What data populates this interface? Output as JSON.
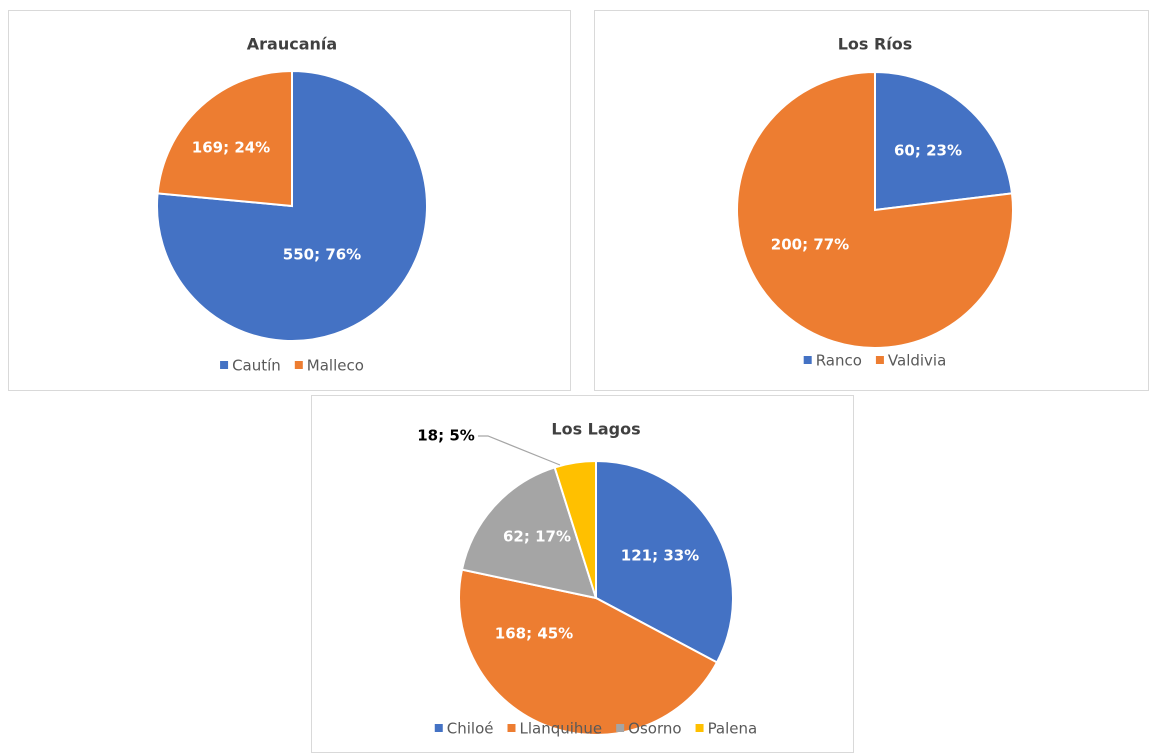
{
  "chart_data": [
    {
      "type": "pie",
      "title": "Araucanía",
      "categories": [
        "Cautín",
        "Malleco"
      ],
      "values": [
        550,
        169
      ],
      "value_labels": [
        "550; 76%",
        "169; 24%"
      ],
      "colors": [
        "#4472c4",
        "#ed7d31"
      ]
    },
    {
      "type": "pie",
      "title": "Los Ríos",
      "categories": [
        "Ranco",
        "Valdivia"
      ],
      "values": [
        60,
        200
      ],
      "value_labels": [
        "60; 23%",
        "200; 77%"
      ],
      "colors": [
        "#4472c4",
        "#ed7d31"
      ]
    },
    {
      "type": "pie",
      "title": "Los Lagos",
      "categories": [
        "Chiloé",
        "Llanquihue",
        "Osorno",
        "Palena"
      ],
      "values": [
        121,
        168,
        62,
        18
      ],
      "value_labels": [
        "121; 33%",
        "168; 45%",
        "62; 17%",
        "18; 5%"
      ],
      "colors": [
        "#4472c4",
        "#ed7d31",
        "#a5a5a5",
        "#ffc000"
      ]
    }
  ]
}
